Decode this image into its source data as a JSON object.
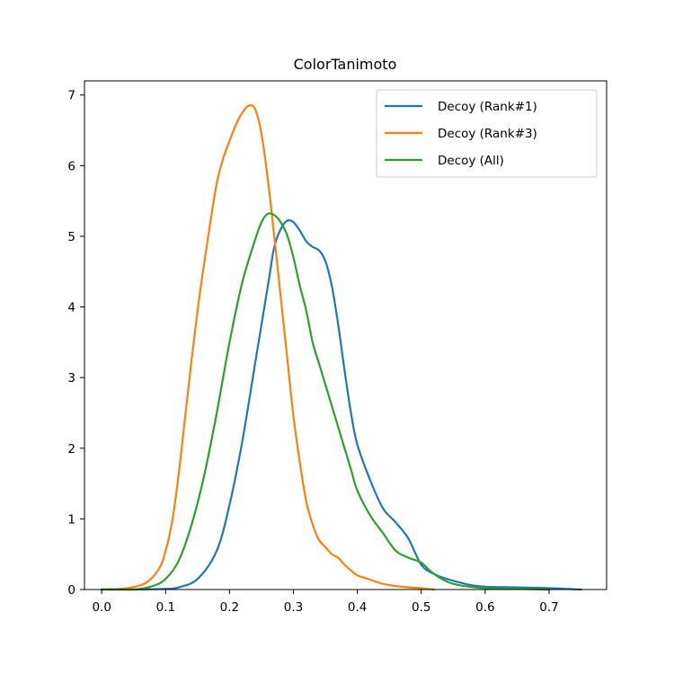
{
  "chart_data": {
    "type": "line",
    "title": "ColorTanimoto",
    "xlabel": "",
    "ylabel": "",
    "xlim": [
      -0.027,
      0.79
    ],
    "ylim": [
      0,
      7.2
    ],
    "xticks": [
      0.0,
      0.1,
      0.2,
      0.3,
      0.4,
      0.5,
      0.6,
      0.7
    ],
    "xtick_labels": [
      "0.0",
      "0.1",
      "0.2",
      "0.3",
      "0.4",
      "0.5",
      "0.6",
      "0.7"
    ],
    "yticks": [
      0,
      1,
      2,
      3,
      4,
      5,
      6,
      7
    ],
    "ytick_labels": [
      "0",
      "1",
      "2",
      "3",
      "4",
      "5",
      "6",
      "7"
    ],
    "grid": false,
    "legend_position": "top-right",
    "series": [
      {
        "name": "Decoy (Rank#1)",
        "color": "#1f77b4",
        "x": [
          0.0,
          0.05,
          0.1,
          0.12,
          0.15,
          0.18,
          0.2,
          0.22,
          0.24,
          0.26,
          0.27,
          0.28,
          0.29,
          0.3,
          0.31,
          0.32,
          0.33,
          0.34,
          0.35,
          0.36,
          0.37,
          0.38,
          0.39,
          0.4,
          0.42,
          0.44,
          0.46,
          0.48,
          0.5,
          0.52,
          0.54,
          0.56,
          0.58,
          0.6,
          0.65,
          0.7,
          0.75
        ],
        "values": [
          0.0,
          0.0,
          0.01,
          0.03,
          0.15,
          0.55,
          1.2,
          2.1,
          3.2,
          4.3,
          4.85,
          5.1,
          5.22,
          5.2,
          5.08,
          4.93,
          4.85,
          4.8,
          4.65,
          4.3,
          3.75,
          3.1,
          2.5,
          2.05,
          1.55,
          1.15,
          0.95,
          0.72,
          0.35,
          0.22,
          0.15,
          0.1,
          0.06,
          0.04,
          0.03,
          0.02,
          0.0
        ]
      },
      {
        "name": "Decoy (Rank#3)",
        "color": "#ff7f0e",
        "x": [
          0.0,
          0.04,
          0.07,
          0.09,
          0.1,
          0.11,
          0.12,
          0.13,
          0.14,
          0.15,
          0.16,
          0.17,
          0.18,
          0.19,
          0.2,
          0.21,
          0.22,
          0.23,
          0.24,
          0.25,
          0.26,
          0.27,
          0.28,
          0.29,
          0.3,
          0.31,
          0.32,
          0.33,
          0.34,
          0.35,
          0.36,
          0.37,
          0.38,
          0.39,
          0.4,
          0.42,
          0.44,
          0.46,
          0.48,
          0.5,
          0.52
        ],
        "values": [
          0.0,
          0.02,
          0.1,
          0.3,
          0.55,
          0.95,
          1.6,
          2.4,
          3.2,
          3.95,
          4.6,
          5.2,
          5.75,
          6.1,
          6.35,
          6.58,
          6.75,
          6.85,
          6.8,
          6.45,
          5.8,
          5.0,
          4.15,
          3.3,
          2.45,
          1.8,
          1.25,
          0.92,
          0.7,
          0.6,
          0.5,
          0.45,
          0.35,
          0.27,
          0.2,
          0.14,
          0.08,
          0.05,
          0.03,
          0.02,
          0.0
        ]
      },
      {
        "name": "Decoy (All)",
        "color": "#2ca02c",
        "x": [
          0.0,
          0.05,
          0.08,
          0.1,
          0.12,
          0.14,
          0.16,
          0.18,
          0.2,
          0.22,
          0.24,
          0.25,
          0.26,
          0.27,
          0.28,
          0.29,
          0.3,
          0.31,
          0.32,
          0.33,
          0.34,
          0.35,
          0.36,
          0.37,
          0.38,
          0.39,
          0.4,
          0.42,
          0.44,
          0.46,
          0.48,
          0.5,
          0.52,
          0.55,
          0.6,
          0.65,
          0.7
        ],
        "values": [
          0.0,
          0.0,
          0.05,
          0.15,
          0.4,
          0.9,
          1.6,
          2.5,
          3.5,
          4.35,
          4.95,
          5.2,
          5.32,
          5.3,
          5.2,
          5.02,
          4.7,
          4.3,
          3.95,
          3.5,
          3.2,
          2.9,
          2.6,
          2.3,
          2.0,
          1.7,
          1.4,
          1.05,
          0.8,
          0.55,
          0.45,
          0.38,
          0.22,
          0.08,
          0.02,
          0.01,
          0.0
        ]
      }
    ]
  }
}
